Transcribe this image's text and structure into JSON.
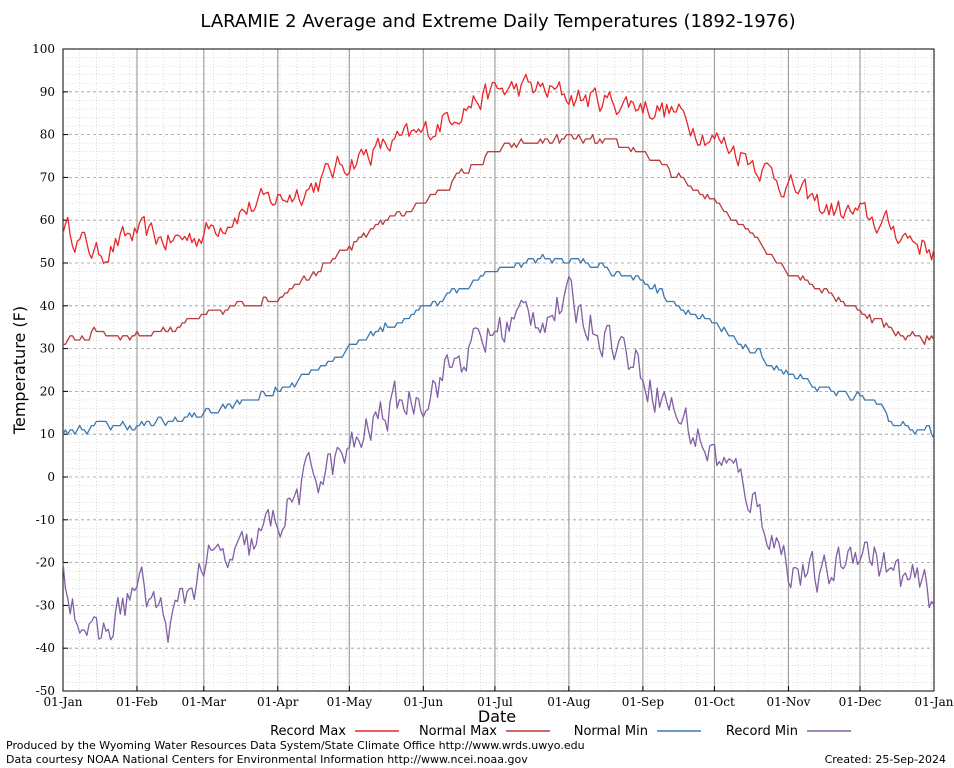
{
  "chart_data": {
    "type": "line",
    "title": "LARAMIE 2 Average and Extreme Daily Temperatures (1892-1976)",
    "xlabel": "Date",
    "ylabel": "Temperature (F)",
    "ylim": [
      -50,
      100
    ],
    "y_ticks": [
      "100",
      "90",
      "80",
      "70",
      "60",
      "50",
      "40",
      "30",
      "20",
      "10",
      "0",
      "-10",
      "-20",
      "-30",
      "-40",
      "-50"
    ],
    "x_ticks": [
      "01-Jan",
      "01-Feb",
      "01-Mar",
      "01-Apr",
      "01-May",
      "01-Jun",
      "01-Jul",
      "01-Aug",
      "01-Sep",
      "01-Oct",
      "01-Nov",
      "01-Dec",
      "01-Jan"
    ],
    "x_tick_days": [
      1,
      32,
      60,
      91,
      121,
      152,
      182,
      213,
      244,
      274,
      305,
      335,
      366
    ],
    "grid": true,
    "legend_position": "bottom",
    "x_days": [
      1,
      15,
      32,
      46,
      60,
      74,
      91,
      105,
      121,
      135,
      152,
      166,
      182,
      196,
      213,
      227,
      244,
      258,
      274,
      288,
      305,
      319,
      335,
      349,
      366
    ],
    "series": [
      {
        "name": "Record Max",
        "color": "#e8262a",
        "values": [
          59,
          52,
          57,
          55,
          57,
          62,
          65,
          68,
          74,
          77,
          80,
          86,
          90,
          91,
          89,
          88,
          87,
          85,
          79,
          75,
          68,
          63,
          61,
          58,
          53
        ]
      },
      {
        "name": "Normal Max",
        "color": "#b83c3c",
        "values": [
          31,
          34,
          33,
          35,
          37,
          40,
          42,
          48,
          53,
          60,
          64,
          70,
          76,
          78,
          79,
          78,
          76,
          70,
          64,
          58,
          48,
          44,
          39,
          34,
          32
        ]
      },
      {
        "name": "Normal Min",
        "color": "#3c78b0",
        "values": [
          10,
          12,
          12,
          13,
          15,
          17,
          20,
          25,
          30,
          35,
          39,
          44,
          48,
          51,
          51,
          49,
          46,
          41,
          35,
          30,
          24,
          20,
          19,
          13,
          10
        ]
      },
      {
        "name": "Record Min",
        "color": "#8060a4",
        "values": [
          -22,
          -40,
          -25,
          -35,
          -20,
          -20,
          -10,
          0,
          5,
          15,
          20,
          27,
          34,
          38,
          40,
          35,
          25,
          15,
          5,
          -3,
          -20,
          -25,
          -15,
          -23,
          -28
        ]
      }
    ]
  },
  "legend": {
    "items": [
      "Record Max",
      "Normal Max",
      "Normal Min",
      "Record Min"
    ]
  },
  "footer": {
    "produced_by": "Produced by the Wyoming Water Resources Data System/State Climate Office http://www.wrds.uwyo.edu",
    "data_courtesy": "Data courtesy NOAA National Centers for Environmental Information http://www.ncei.noaa.gov",
    "created": "Created: 25-Sep-2024"
  }
}
